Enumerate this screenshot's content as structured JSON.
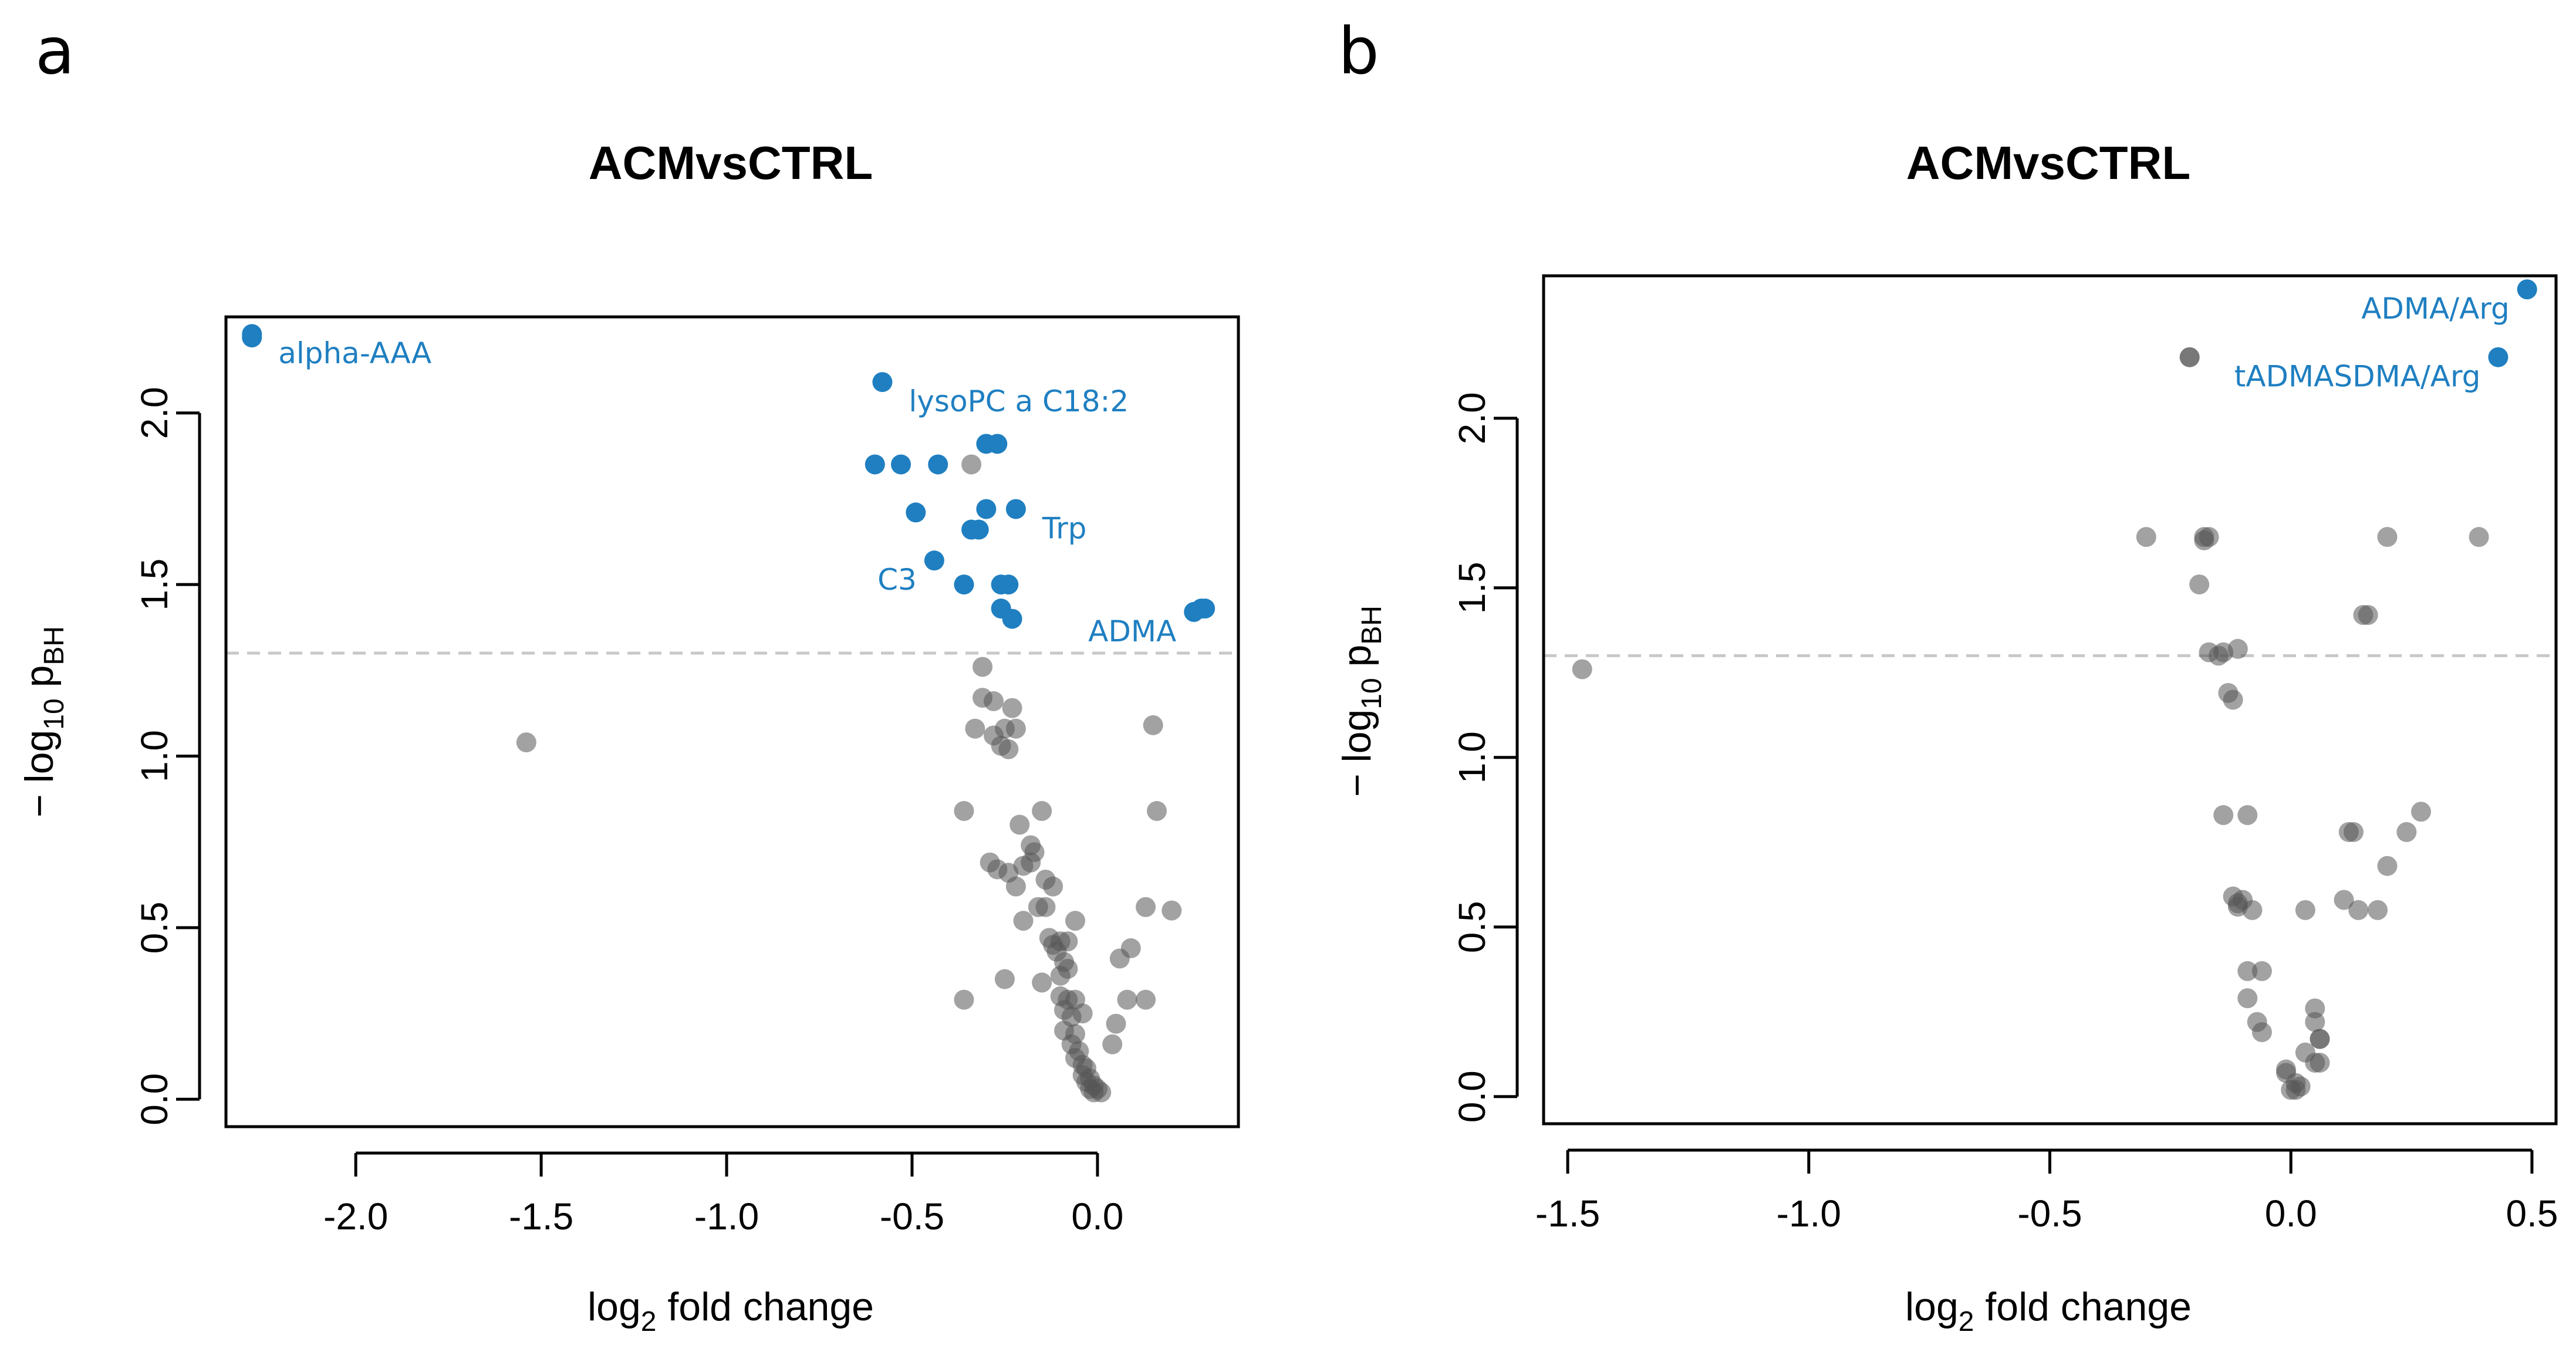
{
  "panels": [
    {
      "letter": "a"
    },
    {
      "letter": "b"
    }
  ],
  "chart_data": [
    {
      "type": "scatter",
      "title": "ACMvsCTRL",
      "xlabel": "log",
      "xlabel_sub": "2",
      "xlabel_rest": " fold change",
      "ylabel_prefix": "− log",
      "ylabel_sub_num": "10",
      "ylabel_p": " p",
      "ylabel_sub_bh": "BH",
      "xlim": [
        -2.35,
        0.38
      ],
      "ylim": [
        -0.08,
        2.28
      ],
      "xticks": [
        -2.0,
        -1.5,
        -1.0,
        -0.5,
        0.0
      ],
      "xtick_labels": [
        "-2.0",
        "-1.5",
        "-1.0",
        "-0.5",
        "0.0"
      ],
      "yticks": [
        0.0,
        0.5,
        1.0,
        1.5,
        2.0
      ],
      "ytick_labels": [
        "0.0",
        "0.5",
        "1.0",
        "1.5",
        "2.0"
      ],
      "threshold": 1.3,
      "significant_color": "#1f7fc1",
      "nonsignificant_color": "#555555",
      "significant_points": [
        [
          -2.28,
          2.22
        ],
        [
          -2.28,
          2.23
        ],
        [
          -0.58,
          2.09
        ],
        [
          -0.3,
          1.91
        ],
        [
          -0.27,
          1.91
        ],
        [
          -0.6,
          1.85
        ],
        [
          -0.53,
          1.85
        ],
        [
          -0.43,
          1.85
        ],
        [
          -0.3,
          1.72
        ],
        [
          -0.22,
          1.72
        ],
        [
          -0.49,
          1.71
        ],
        [
          -0.32,
          1.66
        ],
        [
          -0.34,
          1.66
        ],
        [
          -0.44,
          1.57
        ],
        [
          -0.36,
          1.5
        ],
        [
          -0.26,
          1.5
        ],
        [
          -0.24,
          1.5
        ],
        [
          -0.26,
          1.43
        ],
        [
          -0.23,
          1.4
        ],
        [
          0.26,
          1.42
        ],
        [
          0.28,
          1.43
        ],
        [
          0.29,
          1.43
        ]
      ],
      "nonsignificant_points": [
        [
          -0.34,
          1.85
        ],
        [
          -1.54,
          1.04
        ],
        [
          -0.31,
          1.26
        ],
        [
          -0.31,
          1.17
        ],
        [
          -0.28,
          1.16
        ],
        [
          -0.23,
          1.14
        ],
        [
          -0.33,
          1.08
        ],
        [
          -0.25,
          1.08
        ],
        [
          -0.22,
          1.08
        ],
        [
          -0.28,
          1.06
        ],
        [
          -0.26,
          1.03
        ],
        [
          -0.24,
          1.02
        ],
        [
          0.15,
          1.09
        ],
        [
          -0.36,
          0.84
        ],
        [
          -0.15,
          0.84
        ],
        [
          -0.21,
          0.8
        ],
        [
          0.16,
          0.84
        ],
        [
          -0.18,
          0.74
        ],
        [
          -0.17,
          0.72
        ],
        [
          -0.18,
          0.69
        ],
        [
          -0.29,
          0.69
        ],
        [
          -0.27,
          0.67
        ],
        [
          -0.24,
          0.66
        ],
        [
          -0.2,
          0.68
        ],
        [
          -0.22,
          0.62
        ],
        [
          -0.14,
          0.64
        ],
        [
          -0.12,
          0.62
        ],
        [
          -0.16,
          0.56
        ],
        [
          -0.14,
          0.56
        ],
        [
          -0.2,
          0.52
        ],
        [
          -0.06,
          0.52
        ],
        [
          0.13,
          0.56
        ],
        [
          0.2,
          0.55
        ],
        [
          -0.13,
          0.47
        ],
        [
          -0.12,
          0.45
        ],
        [
          -0.1,
          0.46
        ],
        [
          -0.08,
          0.46
        ],
        [
          -0.11,
          0.43
        ],
        [
          -0.09,
          0.4
        ],
        [
          -0.08,
          0.38
        ],
        [
          0.06,
          0.41
        ],
        [
          0.09,
          0.44
        ],
        [
          -0.1,
          0.36
        ],
        [
          -0.25,
          0.35
        ],
        [
          -0.15,
          0.34
        ],
        [
          -0.36,
          0.29
        ],
        [
          -0.1,
          0.3
        ],
        [
          -0.08,
          0.29
        ],
        [
          -0.06,
          0.29
        ],
        [
          0.08,
          0.29
        ],
        [
          0.13,
          0.29
        ],
        [
          -0.09,
          0.26
        ],
        [
          -0.07,
          0.24
        ],
        [
          -0.04,
          0.25
        ],
        [
          0.05,
          0.22
        ],
        [
          -0.09,
          0.2
        ],
        [
          -0.06,
          0.19
        ],
        [
          -0.07,
          0.16
        ],
        [
          -0.05,
          0.14
        ],
        [
          0.04,
          0.16
        ],
        [
          -0.06,
          0.12
        ],
        [
          -0.04,
          0.1
        ],
        [
          -0.03,
          0.09
        ],
        [
          -0.04,
          0.07
        ],
        [
          -0.02,
          0.06
        ],
        [
          -0.03,
          0.05
        ],
        [
          -0.01,
          0.04
        ],
        [
          -0.02,
          0.03
        ],
        [
          0.0,
          0.03
        ],
        [
          -0.01,
          0.02
        ],
        [
          0.01,
          0.02
        ]
      ],
      "labels": [
        {
          "text": "alpha-AAA",
          "x": -2.28,
          "y": 2.23,
          "anchor": "start"
        },
        {
          "text": "lysoPC a C18:2",
          "x": -0.58,
          "y": 2.09,
          "anchor": "start"
        },
        {
          "text": "Trp",
          "x": -0.22,
          "y": 1.72,
          "anchor": "start"
        },
        {
          "text": "C3",
          "x": -0.44,
          "y": 1.57,
          "anchor": "end"
        },
        {
          "text": "ADMA",
          "x": 0.26,
          "y": 1.42,
          "anchor": "end"
        }
      ]
    },
    {
      "type": "scatter",
      "title": "ACMvsCTRL",
      "xlabel": "log",
      "xlabel_sub": "2",
      "xlabel_rest": " fold change",
      "ylabel_prefix": "− log",
      "ylabel_sub_num": "10",
      "ylabel_p": " p",
      "ylabel_sub_bh": "BH",
      "xlim": [
        -1.55,
        0.55
      ],
      "ylim": [
        -0.08,
        2.42
      ],
      "xticks": [
        -1.5,
        -1.0,
        -0.5,
        0.0,
        0.5
      ],
      "xtick_labels": [
        "-1.5",
        "-1.0",
        "-0.5",
        "0.0",
        "0.5"
      ],
      "yticks": [
        0.0,
        0.5,
        1.0,
        1.5,
        2.0
      ],
      "ytick_labels": [
        "0.0",
        "0.5",
        "1.0",
        "1.5",
        "2.0"
      ],
      "threshold": 1.3,
      "significant_color": "#1f7fc1",
      "nonsignificant_color": "#555555",
      "significant_points": [
        [
          0.49,
          2.38
        ],
        [
          0.43,
          2.18
        ]
      ],
      "nonsignificant_points": [
        [
          -0.21,
          2.18
        ],
        [
          -0.21,
          2.18
        ],
        [
          -1.47,
          1.26
        ],
        [
          -0.3,
          1.65
        ],
        [
          -0.18,
          1.65
        ],
        [
          -0.17,
          1.65
        ],
        [
          -0.18,
          1.64
        ],
        [
          0.2,
          1.65
        ],
        [
          0.39,
          1.65
        ],
        [
          -0.19,
          1.51
        ],
        [
          0.15,
          1.42
        ],
        [
          0.16,
          1.42
        ],
        [
          -0.17,
          1.31
        ],
        [
          -0.15,
          1.3
        ],
        [
          -0.14,
          1.31
        ],
        [
          -0.11,
          1.32
        ],
        [
          -0.13,
          1.19
        ],
        [
          -0.12,
          1.17
        ],
        [
          -0.14,
          0.83
        ],
        [
          -0.09,
          0.83
        ],
        [
          0.13,
          0.78
        ],
        [
          0.12,
          0.78
        ],
        [
          0.27,
          0.84
        ],
        [
          0.24,
          0.78
        ],
        [
          0.2,
          0.68
        ],
        [
          -0.12,
          0.59
        ],
        [
          -0.11,
          0.57
        ],
        [
          -0.1,
          0.58
        ],
        [
          -0.11,
          0.56
        ],
        [
          -0.08,
          0.55
        ],
        [
          0.03,
          0.55
        ],
        [
          0.11,
          0.58
        ],
        [
          0.14,
          0.55
        ],
        [
          0.18,
          0.55
        ],
        [
          -0.09,
          0.37
        ],
        [
          -0.06,
          0.37
        ],
        [
          -0.09,
          0.29
        ],
        [
          -0.07,
          0.22
        ],
        [
          -0.06,
          0.19
        ],
        [
          0.05,
          0.26
        ],
        [
          0.05,
          0.22
        ],
        [
          0.06,
          0.17
        ],
        [
          0.06,
          0.17
        ],
        [
          0.03,
          0.13
        ],
        [
          0.05,
          0.1
        ],
        [
          0.06,
          0.1
        ],
        [
          -0.01,
          0.08
        ],
        [
          -0.01,
          0.07
        ],
        [
          0.01,
          0.04
        ],
        [
          0.02,
          0.03
        ],
        [
          0.0,
          0.02
        ],
        [
          0.01,
          0.02
        ]
      ],
      "labels": [
        {
          "text": "ADMA/Arg",
          "x": 0.49,
          "y": 2.38,
          "anchor": "end"
        },
        {
          "text": "tADMASDMA/Arg",
          "x": 0.43,
          "y": 2.18,
          "anchor": "end"
        }
      ]
    }
  ]
}
